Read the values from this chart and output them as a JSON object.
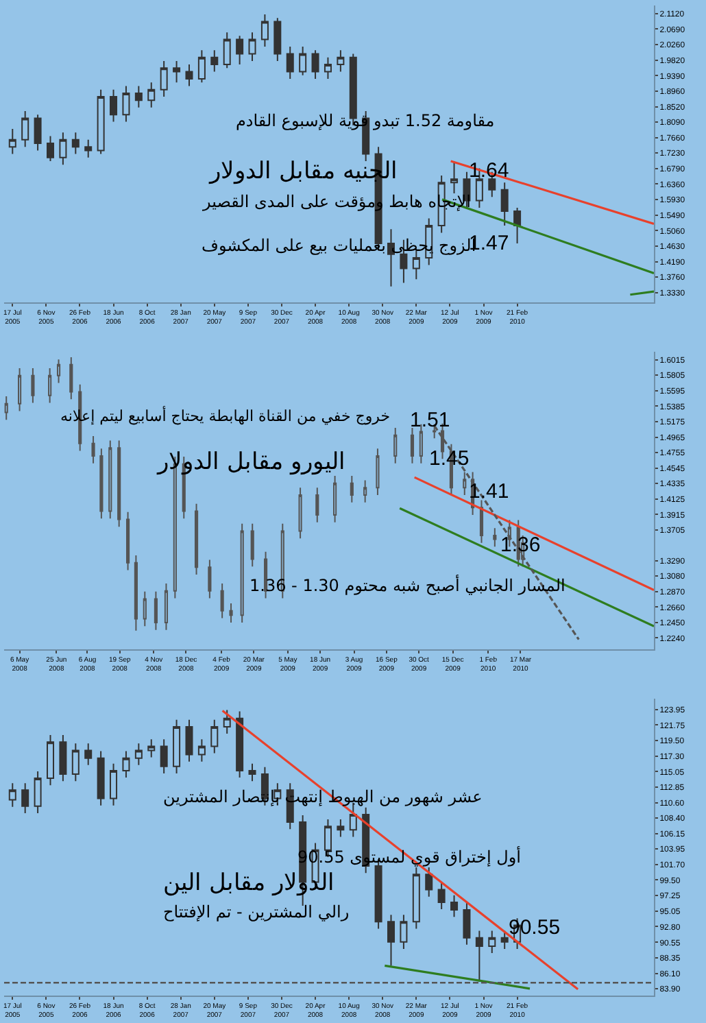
{
  "chart_data": [
    {
      "type": "candlestick",
      "title": "الجنيه مقابل الدولار",
      "color": "#333333",
      "x": [
        "2005-07-17",
        "2005-08-28",
        "2005-10-09",
        "2005-11-20",
        "2006-01-01",
        "2006-02-12",
        "2006-03-26",
        "2006-05-07",
        "2006-06-18",
        "2006-07-30",
        "2006-09-10",
        "2006-10-22",
        "2006-12-03",
        "2007-01-14",
        "2007-02-25",
        "2007-04-08",
        "2007-05-20",
        "2007-07-01",
        "2007-08-12",
        "2007-09-23",
        "2007-11-04",
        "2007-12-16",
        "2008-01-27",
        "2008-03-09",
        "2008-04-20",
        "2008-06-01",
        "2008-07-13",
        "2008-08-24",
        "2008-10-05",
        "2008-11-16",
        "2008-12-28",
        "2009-02-08",
        "2009-03-22",
        "2009-05-03",
        "2009-06-14",
        "2009-07-26",
        "2009-09-06",
        "2009-10-18",
        "2009-11-29",
        "2010-01-10",
        "2010-02-21"
      ],
      "ohlc": [
        [
          1.74,
          1.79,
          1.72,
          1.76
        ],
        [
          1.76,
          1.84,
          1.74,
          1.82
        ],
        [
          1.82,
          1.83,
          1.73,
          1.75
        ],
        [
          1.75,
          1.77,
          1.7,
          1.71
        ],
        [
          1.71,
          1.78,
          1.69,
          1.76
        ],
        [
          1.76,
          1.78,
          1.72,
          1.74
        ],
        [
          1.74,
          1.76,
          1.71,
          1.73
        ],
        [
          1.73,
          1.9,
          1.72,
          1.88
        ],
        [
          1.88,
          1.9,
          1.81,
          1.83
        ],
        [
          1.83,
          1.91,
          1.81,
          1.89
        ],
        [
          1.89,
          1.91,
          1.85,
          1.87
        ],
        [
          1.87,
          1.92,
          1.85,
          1.9
        ],
        [
          1.9,
          1.98,
          1.88,
          1.96
        ],
        [
          1.96,
          1.98,
          1.92,
          1.95
        ],
        [
          1.95,
          1.97,
          1.91,
          1.93
        ],
        [
          1.93,
          2.01,
          1.92,
          1.99
        ],
        [
          1.99,
          2.01,
          1.95,
          1.97
        ],
        [
          1.97,
          2.06,
          1.96,
          2.04
        ],
        [
          2.04,
          2.05,
          1.97,
          2.0
        ],
        [
          2.0,
          2.06,
          1.98,
          2.04
        ],
        [
          2.04,
          2.11,
          2.02,
          2.09
        ],
        [
          2.09,
          2.1,
          1.98,
          2.0
        ],
        [
          2.0,
          2.02,
          1.93,
          1.95
        ],
        [
          1.95,
          2.02,
          1.94,
          2.0
        ],
        [
          2.0,
          2.01,
          1.93,
          1.95
        ],
        [
          1.95,
          1.99,
          1.93,
          1.97
        ],
        [
          1.97,
          2.01,
          1.95,
          1.99
        ],
        [
          1.99,
          2.0,
          1.8,
          1.82
        ],
        [
          1.82,
          1.84,
          1.7,
          1.72
        ],
        [
          1.72,
          1.74,
          1.45,
          1.47
        ],
        [
          1.47,
          1.51,
          1.35,
          1.44
        ],
        [
          1.44,
          1.48,
          1.36,
          1.4
        ],
        [
          1.4,
          1.45,
          1.37,
          1.43
        ],
        [
          1.43,
          1.54,
          1.41,
          1.52
        ],
        [
          1.52,
          1.66,
          1.5,
          1.64
        ],
        [
          1.64,
          1.7,
          1.61,
          1.65
        ],
        [
          1.65,
          1.67,
          1.57,
          1.59
        ],
        [
          1.59,
          1.68,
          1.57,
          1.65
        ],
        [
          1.65,
          1.67,
          1.6,
          1.62
        ],
        [
          1.62,
          1.64,
          1.52,
          1.56
        ],
        [
          1.56,
          1.57,
          1.47,
          1.52
        ]
      ],
      "series": [
        {
          "type": "line",
          "x": [
            "2009-07-15",
            "2011-05-22"
          ],
          "values": [
            1.7,
            1.525
          ],
          "color": "#e8412c"
        },
        {
          "type": "line",
          "x": [
            "2009-06-16",
            "2011-05-22"
          ],
          "values": [
            1.593,
            1.387
          ],
          "color": "#2e7d1f"
        },
        {
          "type": "line",
          "x": [
            "2011-03-04",
            "2011-05-22"
          ],
          "values": [
            1.327,
            1.336
          ],
          "color": "#2e7d1f"
        }
      ],
      "annotations": [
        "مقاومة 1.52 تبدو قوية للإسبوع القادم",
        "الإتجاه هابط ومؤقت على المدى القصير",
        "الزوج يحظى بعمليات بيع على المكشوف",
        "1.64",
        "1.47"
      ],
      "xlim": [
        "2005-06-19",
        "2011-05-22"
      ],
      "xticks": [
        {
          "value": "2005-07-17",
          "label": "17 Jul 2005"
        },
        {
          "value": "2005-11-06",
          "label": "6 Nov 2005"
        },
        {
          "value": "2006-02-26",
          "label": "26 Feb 2006"
        },
        {
          "value": "2006-06-18",
          "label": "18 Jun 2006"
        },
        {
          "value": "2006-10-08",
          "label": "8 Oct 2006"
        },
        {
          "value": "2007-01-28",
          "label": "28 Jan 2007"
        },
        {
          "value": "2007-05-20",
          "label": "20 May 2007"
        },
        {
          "value": "2007-09-09",
          "label": "9 Sep 2007"
        },
        {
          "value": "2007-12-30",
          "label": "30 Dec 2007"
        },
        {
          "value": "2008-04-20",
          "label": "20 Apr 2008"
        },
        {
          "value": "2008-08-10",
          "label": "10 Aug 2008"
        },
        {
          "value": "2008-11-30",
          "label": "30 Nov 2008"
        },
        {
          "value": "2009-03-22",
          "label": "22 Mar 2009"
        },
        {
          "value": "2009-07-12",
          "label": "12 Jul 2009"
        },
        {
          "value": "2009-11-01",
          "label": "1 Nov 2009"
        },
        {
          "value": "2010-02-21",
          "label": "21 Feb 2010"
        }
      ],
      "ylim": [
        1.305,
        2.135
      ],
      "yticks": [
        {
          "value": 2.112,
          "label": "2.1120"
        },
        {
          "value": 2.069,
          "label": "2.0690"
        },
        {
          "value": 2.026,
          "label": "2.0260"
        },
        {
          "value": 1.982,
          "label": "1.9820"
        },
        {
          "value": 1.939,
          "label": "1.9390"
        },
        {
          "value": 1.896,
          "label": "1.8960"
        },
        {
          "value": 1.852,
          "label": "1.8520"
        },
        {
          "value": 1.809,
          "label": "1.8090"
        },
        {
          "value": 1.766,
          "label": "1.7660"
        },
        {
          "value": 1.723,
          "label": "1.7230"
        },
        {
          "value": 1.679,
          "label": "1.6790"
        },
        {
          "value": 1.636,
          "label": "1.6360"
        },
        {
          "value": 1.593,
          "label": "1.5930"
        },
        {
          "value": 1.549,
          "label": "1.5490"
        },
        {
          "value": 1.506,
          "label": "1.5060"
        },
        {
          "value": 1.463,
          "label": "1.4630"
        },
        {
          "value": 1.419,
          "label": "1.4190"
        },
        {
          "value": 1.376,
          "label": "1.3760"
        },
        {
          "value": 1.333,
          "label": "1.3330"
        }
      ]
    },
    {
      "type": "candlestick",
      "title": "اليورو مقابل الدولار",
      "color": "#555555",
      "x": [
        "2008-04-18",
        "2008-05-06",
        "2008-05-24",
        "2008-06-16",
        "2008-06-28",
        "2008-07-15",
        "2008-07-27",
        "2008-08-14",
        "2008-08-25",
        "2008-09-06",
        "2008-09-18",
        "2008-09-30",
        "2008-10-11",
        "2008-10-23",
        "2008-11-07",
        "2008-11-21",
        "2008-12-03",
        "2008-12-15",
        "2009-01-01",
        "2009-01-19",
        "2009-02-05",
        "2009-02-17",
        "2009-03-04",
        "2009-03-18",
        "2009-04-05",
        "2009-04-28",
        "2009-05-22",
        "2009-06-14",
        "2009-07-08",
        "2009-07-31",
        "2009-08-18",
        "2009-09-04",
        "2009-09-28",
        "2009-10-21",
        "2009-11-02",
        "2009-11-20",
        "2009-12-01",
        "2009-12-13",
        "2009-12-31",
        "2010-01-11",
        "2010-01-23",
        "2010-02-10",
        "2010-03-02",
        "2010-03-14",
        "2010-03-20"
      ],
      "ohlc": [
        [
          1.53,
          1.552,
          1.52,
          1.542
        ],
        [
          1.542,
          1.59,
          1.532,
          1.58
        ],
        [
          1.58,
          1.59,
          1.543,
          1.553
        ],
        [
          1.553,
          1.59,
          1.543,
          1.58
        ],
        [
          1.58,
          1.602,
          1.57,
          1.595
        ],
        [
          1.595,
          1.605,
          1.548,
          1.558
        ],
        [
          1.558,
          1.568,
          1.478,
          1.488
        ],
        [
          1.488,
          1.498,
          1.461,
          1.471
        ],
        [
          1.471,
          1.481,
          1.386,
          1.396
        ],
        [
          1.396,
          1.492,
          1.386,
          1.482
        ],
        [
          1.482,
          1.492,
          1.375,
          1.385
        ],
        [
          1.385,
          1.395,
          1.316,
          1.326
        ],
        [
          1.326,
          1.336,
          1.234,
          1.25
        ],
        [
          1.25,
          1.287,
          1.24,
          1.277
        ],
        [
          1.277,
          1.287,
          1.235,
          1.245
        ],
        [
          1.245,
          1.298,
          1.235,
          1.288
        ],
        [
          1.288,
          1.47,
          1.278,
          1.46
        ],
        [
          1.46,
          1.47,
          1.386,
          1.396
        ],
        [
          1.396,
          1.406,
          1.31,
          1.32
        ],
        [
          1.32,
          1.33,
          1.278,
          1.288
        ],
        [
          1.288,
          1.298,
          1.251,
          1.261
        ],
        [
          1.261,
          1.271,
          1.245,
          1.255
        ],
        [
          1.255,
          1.379,
          1.245,
          1.369
        ],
        [
          1.369,
          1.379,
          1.321,
          1.331
        ],
        [
          1.331,
          1.341,
          1.278,
          1.288
        ],
        [
          1.288,
          1.379,
          1.278,
          1.369
        ],
        [
          1.369,
          1.428,
          1.359,
          1.418
        ],
        [
          1.418,
          1.428,
          1.381,
          1.391
        ],
        [
          1.391,
          1.444,
          1.381,
          1.434
        ],
        [
          1.434,
          1.444,
          1.408,
          1.418
        ],
        [
          1.418,
          1.438,
          1.408,
          1.428
        ],
        [
          1.428,
          1.481,
          1.418,
          1.471
        ],
        [
          1.471,
          1.509,
          1.461,
          1.499
        ],
        [
          1.499,
          1.509,
          1.461,
          1.471
        ],
        [
          1.471,
          1.514,
          1.461,
          1.504
        ],
        [
          1.504,
          1.514,
          1.495,
          1.505
        ],
        [
          1.505,
          1.515,
          1.467,
          1.477
        ],
        [
          1.477,
          1.487,
          1.418,
          1.428
        ],
        [
          1.428,
          1.449,
          1.418,
          1.439
        ],
        [
          1.439,
          1.449,
          1.391,
          1.401
        ],
        [
          1.401,
          1.411,
          1.353,
          1.363
        ],
        [
          1.363,
          1.373,
          1.348,
          1.358
        ],
        [
          1.358,
          1.384,
          1.348,
          1.374
        ],
        [
          1.374,
          1.384,
          1.321,
          1.331
        ],
        [
          1.331,
          1.363,
          1.321,
          1.353
        ]
      ],
      "series": [
        {
          "type": "line",
          "x": [
            "2009-10-24",
            "2010-09-14"
          ],
          "values": [
            1.442,
            1.289
          ],
          "color": "#e8412c"
        },
        {
          "type": "line",
          "x": [
            "2009-10-04",
            "2010-09-14"
          ],
          "values": [
            1.4,
            1.24
          ],
          "color": "#2e7d1f"
        },
        {
          "type": "line",
          "x": [
            "2009-11-20",
            "2010-06-04"
          ],
          "values": [
            1.512,
            1.222
          ],
          "color": "#555555",
          "line_style": "dashed"
        }
      ],
      "annotations": [
        "خروج خفي من القناة الهابطة يحتاج أسابيع ليتم إعلانه",
        "المسار الجانبي أصبح شبه محتوم 1.30 - 1.36",
        "1.51",
        "1.45",
        "1.41",
        "1.36"
      ],
      "xlim": [
        "2008-04-15",
        "2010-09-14"
      ],
      "xticks": [
        {
          "value": "2008-05-06",
          "label": "6 May 2008"
        },
        {
          "value": "2008-06-25",
          "label": "25 Jun 2008"
        },
        {
          "value": "2008-08-06",
          "label": "6 Aug 2008"
        },
        {
          "value": "2008-09-19",
          "label": "19 Sep 2008"
        },
        {
          "value": "2008-11-04",
          "label": "4 Nov 2008"
        },
        {
          "value": "2008-12-18",
          "label": "18 Dec 2008"
        },
        {
          "value": "2009-02-04",
          "label": "4 Feb 2009"
        },
        {
          "value": "2009-03-20",
          "label": "20 Mar 2009"
        },
        {
          "value": "2009-05-05",
          "label": "5 May 2009"
        },
        {
          "value": "2009-06-18",
          "label": "18 Jun 2009"
        },
        {
          "value": "2009-08-03",
          "label": "3 Aug 2009"
        },
        {
          "value": "2009-09-16",
          "label": "16 Sep 2009"
        },
        {
          "value": "2009-10-30",
          "label": "30 Oct 2009"
        },
        {
          "value": "2009-12-15",
          "label": "15 Dec 2009"
        },
        {
          "value": "2010-02-01",
          "label": "1 Feb 2010"
        },
        {
          "value": "2010-03-17",
          "label": "17 Mar 2010"
        }
      ],
      "ylim": [
        1.209,
        1.612
      ],
      "yticks": [
        1.6015,
        1.5805,
        1.5595,
        1.5385,
        1.5175,
        1.4965,
        1.4755,
        1.4545,
        1.4335,
        1.4125,
        1.3915,
        1.3705,
        {
          "value": 1.329,
          "label": "1.3290"
        },
        {
          "value": 1.308,
          "label": "1.3080"
        },
        {
          "value": 1.287,
          "label": "1.2870"
        },
        {
          "value": 1.266,
          "label": "1.2660"
        },
        {
          "value": 1.245,
          "label": "1.2450"
        },
        {
          "value": 1.224,
          "label": "1.2240"
        }
      ]
    },
    {
      "type": "candlestick",
      "title": "الدولار مقابل الين",
      "color": "#333333",
      "x": [
        "2005-07-17",
        "2005-08-28",
        "2005-10-09",
        "2005-11-20",
        "2006-01-01",
        "2006-02-12",
        "2006-03-26",
        "2006-05-07",
        "2006-06-18",
        "2006-07-30",
        "2006-09-10",
        "2006-10-22",
        "2006-12-03",
        "2007-01-14",
        "2007-02-25",
        "2007-04-08",
        "2007-05-20",
        "2007-07-01",
        "2007-08-12",
        "2007-09-23",
        "2007-11-04",
        "2007-12-16",
        "2008-01-27",
        "2008-03-09",
        "2008-04-20",
        "2008-06-01",
        "2008-07-13",
        "2008-08-24",
        "2008-10-05",
        "2008-11-16",
        "2008-12-28",
        "2009-02-08",
        "2009-03-22",
        "2009-05-03",
        "2009-06-14",
        "2009-07-26",
        "2009-09-06",
        "2009-10-18",
        "2009-11-29",
        "2010-01-10",
        "2010-02-21"
      ],
      "ohlc": [
        [
          111.0,
          113.4,
          110.0,
          112.4
        ],
        [
          112.4,
          113.4,
          109.1,
          110.1
        ],
        [
          110.1,
          115.1,
          109.1,
          114.1
        ],
        [
          114.1,
          120.3,
          113.1,
          119.3
        ],
        [
          119.3,
          120.3,
          113.7,
          114.7
        ],
        [
          114.7,
          119.1,
          113.7,
          118.1
        ],
        [
          118.1,
          119.1,
          116.0,
          117.0
        ],
        [
          117.0,
          118.0,
          110.2,
          111.2
        ],
        [
          111.2,
          116.2,
          110.2,
          115.2
        ],
        [
          115.2,
          118.0,
          114.2,
          117.0
        ],
        [
          117.0,
          119.1,
          116.0,
          118.1
        ],
        [
          118.1,
          119.7,
          117.1,
          118.7
        ],
        [
          118.7,
          119.7,
          114.8,
          115.8
        ],
        [
          115.8,
          122.5,
          114.8,
          121.5
        ],
        [
          121.5,
          122.5,
          116.5,
          117.5
        ],
        [
          117.5,
          119.7,
          116.5,
          118.7
        ],
        [
          118.7,
          122.5,
          117.7,
          121.5
        ],
        [
          121.5,
          123.9,
          120.5,
          122.7
        ],
        [
          122.7,
          123.7,
          114.2,
          115.2
        ],
        [
          115.2,
          116.2,
          113.7,
          114.7
        ],
        [
          114.7,
          115.7,
          110.2,
          111.2
        ],
        [
          111.2,
          113.4,
          110.2,
          112.4
        ],
        [
          112.4,
          113.4,
          106.8,
          107.8
        ],
        [
          107.8,
          108.8,
          95.8,
          99.2
        ],
        [
          99.2,
          104.8,
          98.2,
          103.8
        ],
        [
          103.8,
          108.2,
          102.8,
          107.2
        ],
        [
          107.2,
          108.2,
          105.7,
          106.7
        ],
        [
          106.7,
          110.6,
          105.7,
          108.9
        ],
        [
          108.9,
          109.9,
          100.5,
          101.5
        ],
        [
          101.5,
          102.5,
          92.5,
          93.5
        ],
        [
          93.5,
          94.5,
          87.2,
          90.6
        ],
        [
          90.6,
          94.5,
          89.6,
          93.5
        ],
        [
          93.5,
          101.3,
          92.5,
          100.3
        ],
        [
          100.3,
          101.3,
          97.1,
          98.1
        ],
        [
          98.1,
          99.1,
          95.3,
          96.3
        ],
        [
          96.3,
          97.3,
          94.2,
          95.2
        ],
        [
          95.2,
          96.2,
          90.2,
          91.2
        ],
        [
          91.2,
          92.2,
          84.9,
          90.0
        ],
        [
          90.0,
          92.2,
          89.0,
          91.2
        ],
        [
          91.2,
          92.2,
          89.6,
          90.6
        ],
        [
          90.6,
          94.0,
          89.6,
          93.0
        ]
      ],
      "series": [
        {
          "type": "line",
          "x": [
            "2007-06-16",
            "2010-09-11"
          ],
          "values": [
            123.8,
            83.8
          ],
          "color": "#e8412c"
        },
        {
          "type": "line",
          "x": [
            "2008-12-07",
            "2010-04-04"
          ],
          "values": [
            87.2,
            83.9
          ],
          "color": "#2e7d1f"
        }
      ],
      "ref_lines": [
        {
          "axis": "y",
          "value": 84.75,
          "color": "#555555",
          "line_style": "dashed"
        }
      ],
      "annotations": [
        "عشر شهور من الهبوط إنتهت بإنتصار المشترين",
        "أول إختراق قوي لمستوى 90.55",
        "رالي المشترين - تم الإفتتاح",
        "90.55"
      ],
      "xlim": [
        "2005-06-19",
        "2011-05-22"
      ],
      "xticks": [
        {
          "value": "2005-07-17",
          "label": "17 Jul 2005"
        },
        {
          "value": "2005-11-06",
          "label": "6 Nov 2005"
        },
        {
          "value": "2006-02-26",
          "label": "26 Feb 2006"
        },
        {
          "value": "2006-06-18",
          "label": "18 Jun 2006"
        },
        {
          "value": "2006-10-08",
          "label": "8 Oct 2006"
        },
        {
          "value": "2007-01-28",
          "label": "28 Jan 2007"
        },
        {
          "value": "2007-05-20",
          "label": "20 May 2007"
        },
        {
          "value": "2007-09-09",
          "label": "9 Sep 2007"
        },
        {
          "value": "2007-12-30",
          "label": "30 Dec 2007"
        },
        {
          "value": "2008-04-20",
          "label": "20 Apr 2008"
        },
        {
          "value": "2008-08-10",
          "label": "10 Aug 2008"
        },
        {
          "value": "2008-11-30",
          "label": "30 Nov 2008"
        },
        {
          "value": "2009-03-22",
          "label": "22 Mar 2009"
        },
        {
          "value": "2009-07-12",
          "label": "12 Jul 2009"
        },
        {
          "value": "2009-11-01",
          "label": "1 Nov 2009"
        },
        {
          "value": "2010-02-21",
          "label": "21 Feb 2010"
        }
      ],
      "ylim": [
        82.9,
        125.55
      ],
      "yticks": [
        123.95,
        121.75,
        {
          "value": 119.5,
          "label": "119.50"
        },
        {
          "value": 117.3,
          "label": "117.30"
        },
        115.05,
        112.85,
        {
          "value": 110.6,
          "label": "110.60"
        },
        {
          "value": 108.4,
          "label": "108.40"
        },
        106.15,
        103.95,
        {
          "value": 101.7,
          "label": "101.70"
        },
        {
          "value": 99.5,
          "label": "99.50"
        },
        97.25,
        95.05,
        {
          "value": 92.8,
          "label": "92.80"
        },
        90.55,
        88.35,
        {
          "value": 86.1,
          "label": "86.10"
        },
        {
          "value": 83.9,
          "label": "83.90"
        }
      ]
    }
  ]
}
